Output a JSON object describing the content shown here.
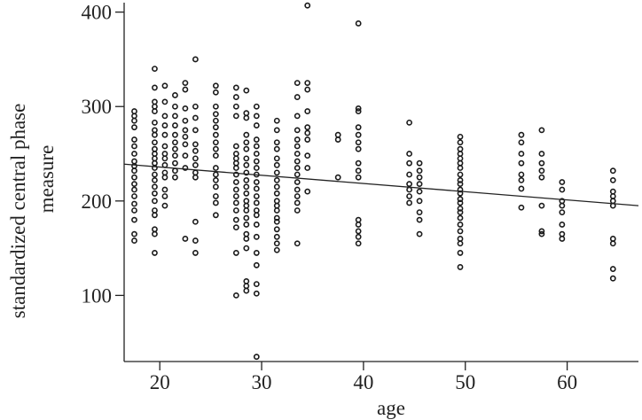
{
  "chart_data": {
    "type": "scatter",
    "title": "",
    "xlabel": "age",
    "ylabel_lines": [
      "standardized central phase",
      "measure"
    ],
    "xlim": [
      16.5,
      67
    ],
    "ylim": [
      30,
      410
    ],
    "x_ticks": [
      20,
      30,
      40,
      50,
      60
    ],
    "y_ticks": [
      100,
      200,
      300,
      400
    ],
    "grid": false,
    "legend": "none",
    "trendline": {
      "x": [
        16.5,
        67
      ],
      "y": [
        239,
        195
      ]
    },
    "columns": [
      {
        "x": 17.5,
        "y": [
          295,
          290,
          285,
          278,
          265,
          258,
          250,
          242,
          237,
          232,
          225,
          218,
          212,
          205,
          197,
          190,
          180,
          165,
          158
        ]
      },
      {
        "x": 19.5,
        "y": [
          340,
          320,
          305,
          300,
          295,
          283,
          275,
          270,
          262,
          255,
          250,
          245,
          240,
          235,
          228,
          222,
          215,
          208,
          200,
          190,
          185,
          170,
          165,
          145
        ]
      },
      {
        "x": 20.5,
        "y": [
          322,
          305,
          290,
          280,
          270,
          258,
          250,
          245,
          238,
          230,
          225,
          212,
          205,
          195
        ]
      },
      {
        "x": 21.5,
        "y": [
          312,
          300,
          290,
          280,
          270,
          262,
          255,
          248,
          240,
          232,
          225
        ]
      },
      {
        "x": 22.5,
        "y": [
          325,
          318,
          298,
          285,
          275,
          268,
          260,
          248,
          235,
          160
        ]
      },
      {
        "x": 23.5,
        "y": [
          350,
          300,
          288,
          275,
          260,
          253,
          245,
          238,
          230,
          225,
          178,
          158,
          145
        ]
      },
      {
        "x": 25.5,
        "y": [
          322,
          315,
          300,
          292,
          285,
          278,
          270,
          262,
          255,
          248,
          235,
          228,
          222,
          215,
          205,
          198,
          185
        ]
      },
      {
        "x": 27.5,
        "y": [
          320,
          310,
          300,
          290,
          258,
          250,
          245,
          240,
          235,
          228,
          220,
          212,
          205,
          198,
          190,
          180,
          172,
          145,
          100
        ]
      },
      {
        "x": 28.5,
        "y": [
          317,
          293,
          288,
          270,
          262,
          255,
          245,
          238,
          230,
          222,
          215,
          208,
          200,
          195,
          190,
          182,
          175,
          165,
          160,
          150,
          115,
          110,
          105
        ]
      },
      {
        "x": 29.5,
        "y": [
          300,
          290,
          280,
          265,
          258,
          250,
          242,
          235,
          228,
          220,
          213,
          205,
          198,
          190,
          185,
          175,
          162,
          145,
          132,
          112,
          102,
          35
        ]
      },
      {
        "x": 31.5,
        "y": [
          285,
          275,
          262,
          255,
          245,
          238,
          230,
          222,
          215,
          208,
          200,
          195,
          190,
          182,
          178,
          170,
          162,
          155,
          148
        ]
      },
      {
        "x": 33.5,
        "y": [
          325,
          310,
          290,
          275,
          265,
          258,
          250,
          242,
          235,
          228,
          220,
          212,
          205,
          198,
          190,
          155
        ]
      },
      {
        "x": 34.5,
        "y": [
          407,
          325,
          318,
          295,
          278,
          272,
          265,
          248,
          235,
          210
        ]
      },
      {
        "x": 37.5,
        "y": [
          270,
          265,
          225
        ]
      },
      {
        "x": 39.5,
        "y": [
          388,
          298,
          295,
          278,
          270,
          262,
          255,
          240,
          232,
          225,
          180,
          175,
          168,
          162,
          155
        ]
      },
      {
        "x": 44.5,
        "y": [
          283,
          250,
          240,
          228,
          218,
          212,
          205,
          198
        ]
      },
      {
        "x": 45.5,
        "y": [
          240,
          232,
          225,
          218,
          210,
          200,
          188,
          180,
          165
        ]
      },
      {
        "x": 49.5,
        "y": [
          268,
          262,
          255,
          250,
          245,
          240,
          235,
          228,
          222,
          218,
          212,
          208,
          202,
          198,
          192,
          188,
          182,
          175,
          168,
          160,
          155,
          145,
          130
        ]
      },
      {
        "x": 55.5,
        "y": [
          270,
          262,
          250,
          240,
          228,
          222,
          213,
          193
        ]
      },
      {
        "x": 57.5,
        "y": [
          275,
          250,
          240,
          232,
          225,
          195,
          168,
          165
        ]
      },
      {
        "x": 59.5,
        "y": [
          220,
          212,
          200,
          195,
          188,
          175,
          165,
          160
        ]
      },
      {
        "x": 64.5,
        "y": [
          232,
          222,
          210,
          205,
          200,
          195,
          160,
          155,
          128,
          118
        ]
      }
    ]
  }
}
